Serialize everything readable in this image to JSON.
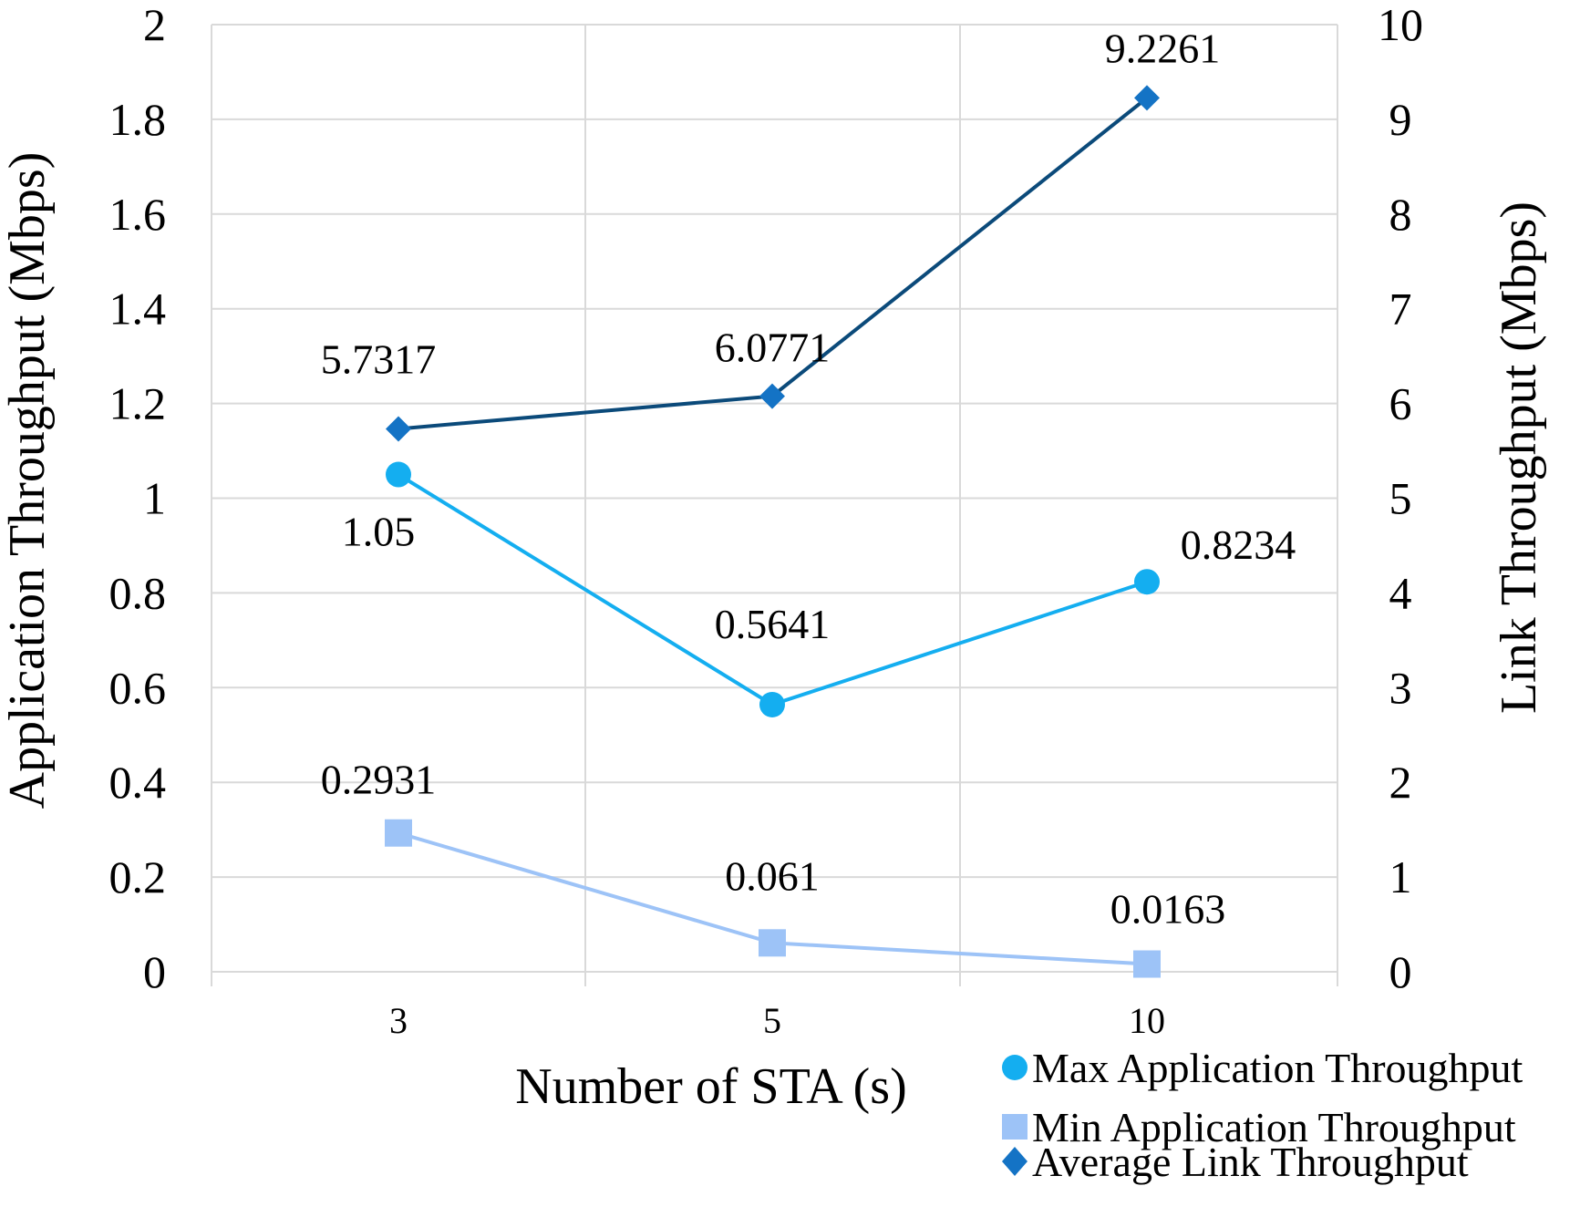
{
  "chart_data": {
    "type": "line",
    "title": "",
    "xlabel": "Number of STA (s)",
    "ylabel_left": "Application Throughput (Mbps)",
    "ylabel_right": "Link Throughput (Mbps)",
    "categories": [
      "3",
      "5",
      "10"
    ],
    "ylim_left": [
      0,
      2
    ],
    "ylim_right": [
      0,
      10
    ],
    "yticks_left": [
      "0",
      "0.2",
      "0.4",
      "0.6",
      "0.8",
      "1",
      "1.2",
      "1.4",
      "1.6",
      "1.8",
      "2"
    ],
    "yticks_right": [
      "0",
      "1",
      "2",
      "3",
      "4",
      "5",
      "6",
      "7",
      "8",
      "9",
      "10"
    ],
    "grid": true,
    "legend_position": "bottom-right",
    "series": [
      {
        "name": "Max Application Throughput",
        "axis": "left",
        "marker": "circle",
        "color": "#14aef0",
        "values": [
          1.05,
          0.5641,
          0.8234
        ],
        "labels": [
          "1.05",
          "0.5641",
          "0.8234"
        ]
      },
      {
        "name": "Min Application Throughput",
        "axis": "left",
        "marker": "square",
        "color": "#9dc3f7",
        "values": [
          0.2931,
          0.061,
          0.0163
        ],
        "labels": [
          "0.2931",
          "0.061",
          "0.0163"
        ]
      },
      {
        "name": "Average Link Throughput",
        "axis": "right",
        "marker": "diamond",
        "color": "#0b4a7a",
        "marker_color": "#1473c5",
        "values": [
          5.7317,
          6.0771,
          9.2261
        ],
        "labels": [
          "5.7317",
          "6.0771",
          "9.2261"
        ]
      }
    ]
  }
}
